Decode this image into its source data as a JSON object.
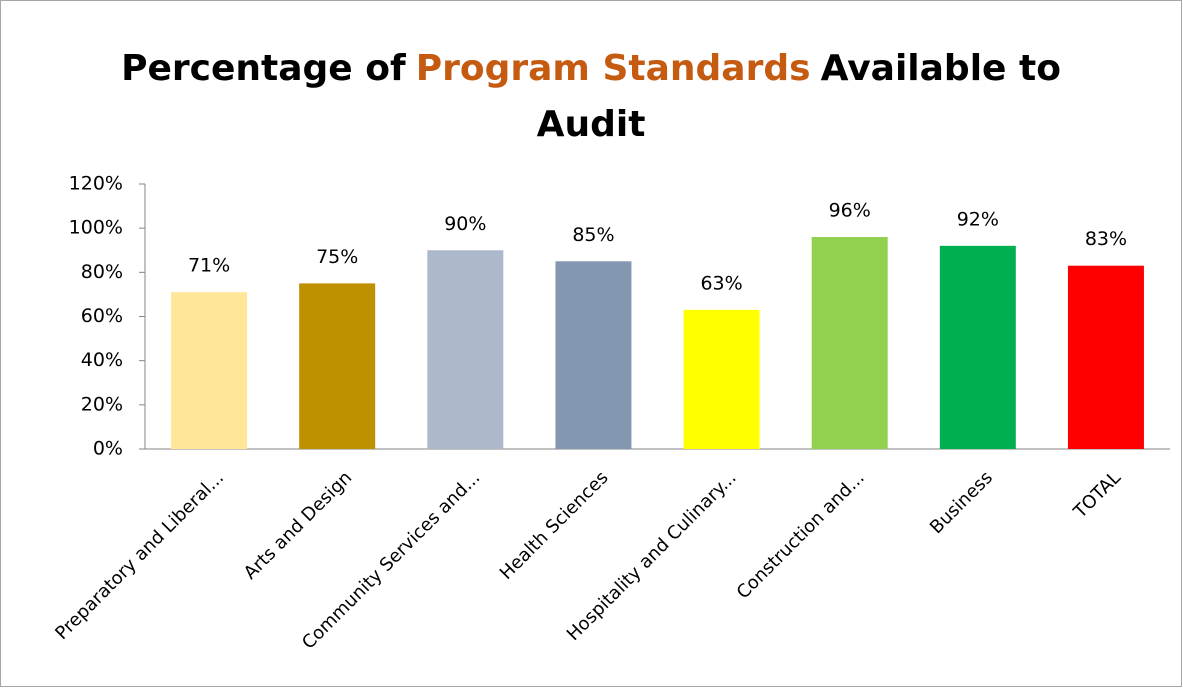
{
  "chart_data": {
    "type": "bar",
    "title": [
      [
        {
          "text": "Percentage of",
          "color": "#000000"
        },
        {
          "text": "Program Standards",
          "color": "#c55a11"
        },
        {
          "text": "Available to",
          "color": "#000000"
        }
      ],
      [
        {
          "text": "Audit",
          "color": "#000000"
        }
      ]
    ],
    "categories": [
      "Preparatory and Liberal...",
      "Arts and Design",
      "Community Services and...",
      "Health Sciences",
      "Hospitality and Culinary...",
      "Construction and...",
      "Business",
      "TOTAL"
    ],
    "values": [
      71,
      75,
      90,
      85,
      63,
      96,
      92,
      83
    ],
    "value_labels": [
      "71%",
      "75%",
      "90%",
      "85%",
      "63%",
      "96%",
      "92%",
      "83%"
    ],
    "colors": [
      "#ffe699",
      "#bf9000",
      "#adb9ca",
      "#8497b0",
      "#ffff00",
      "#92d050",
      "#00b050",
      "#ff0000"
    ],
    "ylim": [
      0,
      120
    ],
    "yticks": [
      {
        "value": 0,
        "label": "0%"
      },
      {
        "value": 20,
        "label": "20%"
      },
      {
        "value": 40,
        "label": "40%"
      },
      {
        "value": 60,
        "label": "60%"
      },
      {
        "value": 80,
        "label": "80%"
      },
      {
        "value": 100,
        "label": "100%"
      },
      {
        "value": 120,
        "label": "120%"
      }
    ],
    "grid": false
  }
}
